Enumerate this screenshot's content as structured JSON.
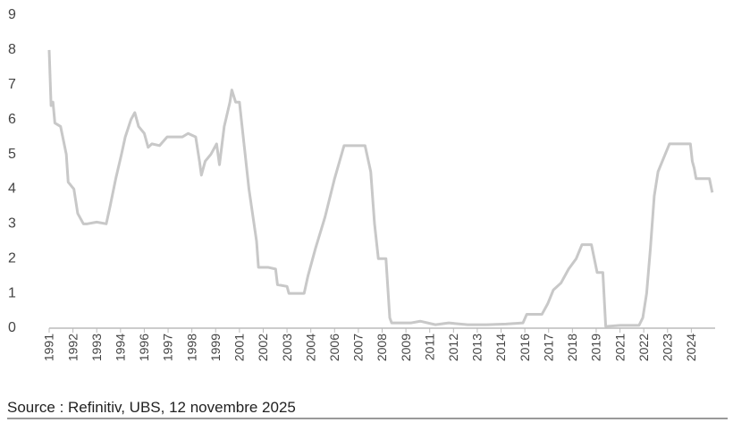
{
  "chart_data": {
    "type": "line",
    "source": "Source : Refinitiv, UBS, 12 novembre 2025",
    "color": "#c8c8c8",
    "grid": false,
    "xlim": [
      1991,
      2026
    ],
    "ylim": [
      0,
      9
    ],
    "yticks": [
      0,
      1,
      2,
      3,
      4,
      5,
      6,
      7,
      8,
      9
    ],
    "xticks": [
      {
        "value": 1991,
        "label": "1991"
      },
      {
        "value": 1992.25,
        "label": "1992"
      },
      {
        "value": 1993.5,
        "label": "1993"
      },
      {
        "value": 1994.75,
        "label": "1994"
      },
      {
        "value": 1996,
        "label": "1996"
      },
      {
        "value": 1997.25,
        "label": "1997"
      },
      {
        "value": 1998.5,
        "label": "1998"
      },
      {
        "value": 1999.75,
        "label": "1999"
      },
      {
        "value": 2001,
        "label": "2001"
      },
      {
        "value": 2002.25,
        "label": "2002"
      },
      {
        "value": 2003.5,
        "label": "2003"
      },
      {
        "value": 2004.75,
        "label": "2004"
      },
      {
        "value": 2006,
        "label": "2006"
      },
      {
        "value": 2007.25,
        "label": "2007"
      },
      {
        "value": 2008.5,
        "label": "2008"
      },
      {
        "value": 2009.75,
        "label": "2009"
      },
      {
        "value": 2011,
        "label": "2011"
      },
      {
        "value": 2012.25,
        "label": "2012"
      },
      {
        "value": 2013.5,
        "label": "2013"
      },
      {
        "value": 2014.75,
        "label": "2014"
      },
      {
        "value": 2016,
        "label": "2016"
      },
      {
        "value": 2017.25,
        "label": "2017"
      },
      {
        "value": 2018.5,
        "label": "2018"
      },
      {
        "value": 2019.75,
        "label": "2019"
      },
      {
        "value": 2021,
        "label": "2021"
      },
      {
        "value": 2022.25,
        "label": "2022"
      },
      {
        "value": 2023.5,
        "label": "2023"
      },
      {
        "value": 2024.75,
        "label": "2024"
      }
    ],
    "x": [
      1991.0,
      1991.1,
      1991.2,
      1991.3,
      1991.6,
      1991.9,
      1992.0,
      1992.3,
      1992.5,
      1992.8,
      1993.0,
      1993.5,
      1994.0,
      1994.2,
      1994.5,
      1994.8,
      1995.0,
      1995.3,
      1995.5,
      1995.7,
      1996.0,
      1996.2,
      1996.4,
      1996.8,
      1997.2,
      1997.6,
      1998.0,
      1998.3,
      1998.7,
      1998.9,
      1999.0,
      1999.2,
      1999.5,
      1999.8,
      1999.95,
      2000.2,
      2000.5,
      2000.6,
      2000.8,
      2001.0,
      2001.2,
      2001.5,
      2001.9,
      2002.0,
      2002.5,
      2002.9,
      2003.0,
      2003.5,
      2003.6,
      2004.4,
      2004.6,
      2005.0,
      2005.5,
      2006.0,
      2006.5,
      2007.6,
      2007.9,
      2008.1,
      2008.3,
      2008.7,
      2008.9,
      2009.0,
      2010.0,
      2010.5,
      2011.3,
      2012.0,
      2013.0,
      2014.0,
      2015.0,
      2015.9,
      2016.1,
      2016.9,
      2017.2,
      2017.5,
      2017.9,
      2018.3,
      2018.7,
      2019.0,
      2019.5,
      2019.8,
      2020.1,
      2020.25,
      2021.0,
      2022.0,
      2022.2,
      2022.4,
      2022.6,
      2022.8,
      2023.0,
      2023.3,
      2023.6,
      2024.7,
      2024.8,
      2024.9,
      2025.0,
      2025.7,
      2025.85
    ],
    "values": [
      8.0,
      6.4,
      6.5,
      5.9,
      5.8,
      5.0,
      4.2,
      4.0,
      3.3,
      3.0,
      3.0,
      3.05,
      3.0,
      3.5,
      4.3,
      5.0,
      5.5,
      6.0,
      6.2,
      5.8,
      5.6,
      5.2,
      5.3,
      5.25,
      5.5,
      5.5,
      5.5,
      5.6,
      5.5,
      4.8,
      4.4,
      4.8,
      5.0,
      5.3,
      4.7,
      5.8,
      6.5,
      6.85,
      6.5,
      6.5,
      5.5,
      4.0,
      2.5,
      1.75,
      1.75,
      1.7,
      1.25,
      1.2,
      1.0,
      1.0,
      1.5,
      2.3,
      3.2,
      4.3,
      5.25,
      5.25,
      4.5,
      3.0,
      2.0,
      2.0,
      0.3,
      0.15,
      0.15,
      0.2,
      0.1,
      0.15,
      0.1,
      0.1,
      0.12,
      0.15,
      0.4,
      0.4,
      0.7,
      1.1,
      1.3,
      1.7,
      2.0,
      2.4,
      2.4,
      1.6,
      1.6,
      0.05,
      0.08,
      0.08,
      0.3,
      1.0,
      2.3,
      3.8,
      4.5,
      4.9,
      5.3,
      5.3,
      4.8,
      4.6,
      4.3,
      4.3,
      3.9
    ]
  }
}
